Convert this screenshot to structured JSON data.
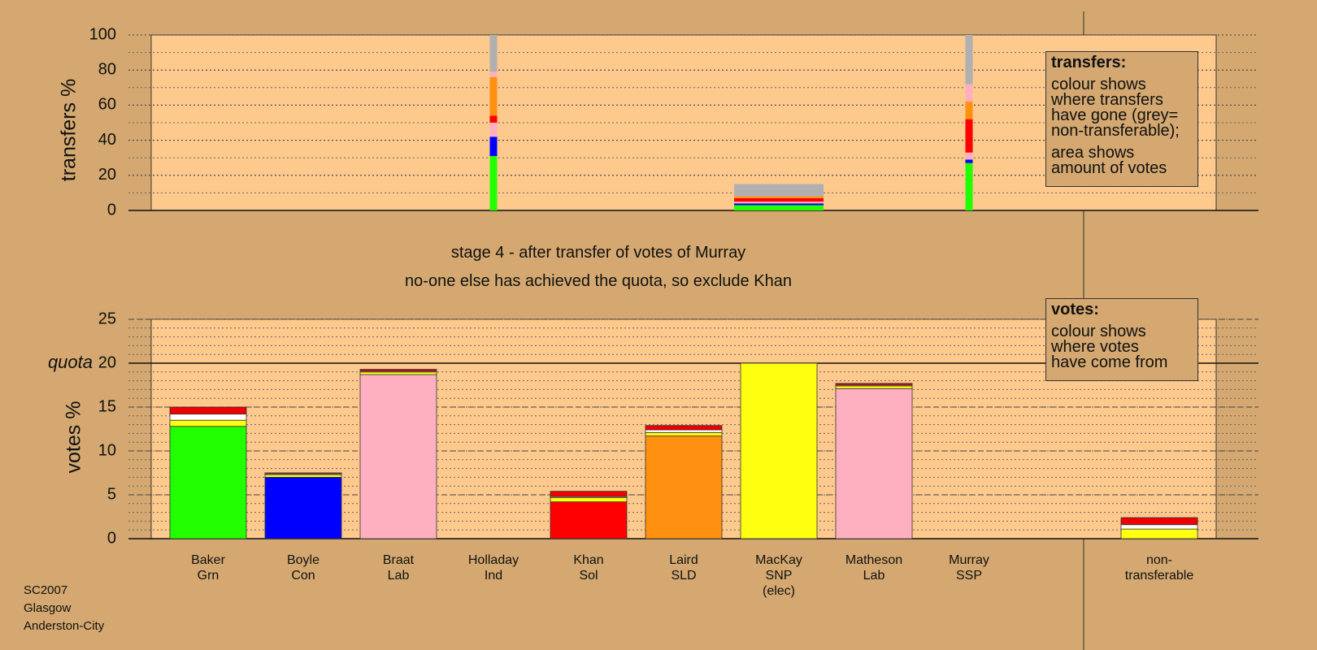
{
  "title": "stage 4 - after transfer of votes of Murray",
  "subtitle": "no-one else has achieved the quota, so exclude Khan",
  "footer": [
    "SC2007",
    "Glasgow",
    "Anderston-City"
  ],
  "chart_data": [
    {
      "type": "bar",
      "stacked": true,
      "ylabel": "transfers %",
      "ylim": [
        0,
        100
      ],
      "yticks": [
        0,
        20,
        40,
        60,
        80,
        100
      ],
      "minor_tick_step": 10,
      "grid": "dotted",
      "legend": {
        "title": "transfers:",
        "text": [
          "colour shows\nwhere transfers\nhave gone (grey=\nnon-transferable);",
          "area shows\namount of votes"
        ]
      },
      "series": [
        {
          "color": "#22ff00",
          "values": [
            null,
            null,
            null,
            31,
            null,
            null,
            3,
            null,
            27,
            null
          ]
        },
        {
          "color": "#0000ff",
          "values": [
            null,
            null,
            null,
            11,
            null,
            null,
            1,
            null,
            2,
            null
          ]
        },
        {
          "color": "#ffb0c0",
          "values": [
            null,
            null,
            null,
            8,
            null,
            null,
            1,
            null,
            4,
            null
          ]
        },
        {
          "color": "#ff0000",
          "values": [
            null,
            null,
            null,
            4,
            null,
            null,
            2,
            null,
            19,
            null
          ]
        },
        {
          "color": "#ff9010",
          "values": [
            null,
            null,
            null,
            22,
            null,
            null,
            1,
            null,
            10,
            null
          ]
        },
        {
          "color": "#ffb0c0",
          "values": [
            null,
            null,
            null,
            3,
            null,
            null,
            0,
            null,
            10,
            null
          ]
        },
        {
          "color": "#b0b0b0",
          "values": [
            null,
            null,
            null,
            21,
            null,
            null,
            7,
            null,
            28,
            null
          ]
        }
      ]
    },
    {
      "type": "bar",
      "stacked": true,
      "ylabel": "votes %",
      "categories": [
        "Baker\nGrn",
        "Boyle\nCon",
        "Braat\nLab",
        "Holladay\nInd",
        "Khan\nSol",
        "Laird\nSLD",
        "MacKay\nSNP\n(elec)",
        "Matheson\nLab",
        "Murray\nSSP",
        "non-\ntransferable"
      ],
      "ylim": [
        0,
        25
      ],
      "yticks": [
        0,
        5,
        10,
        15,
        20,
        25
      ],
      "minor_tick_step": 1,
      "grid": "dashed",
      "quota": {
        "value": 20,
        "label": "quota"
      },
      "legend": {
        "title": "votes:",
        "text": [
          "colour shows\nwhere votes\nhave come from"
        ]
      },
      "series": [
        {
          "color": "#22ff00",
          "values": [
            12.8,
            0,
            0,
            0,
            0,
            0,
            0,
            0,
            0,
            0
          ]
        },
        {
          "color": "#0000ff",
          "values": [
            0,
            7.0,
            0,
            0,
            0,
            0,
            0,
            0,
            0,
            0
          ]
        },
        {
          "color": "#ffb0c0",
          "values": [
            0,
            0,
            18.7,
            0,
            0,
            0,
            0,
            0,
            0,
            0
          ]
        },
        {
          "color": "#ff0000",
          "values": [
            0,
            0,
            0,
            0,
            4.2,
            0,
            0,
            0,
            0,
            0
          ]
        },
        {
          "color": "#ff9010",
          "values": [
            0,
            0,
            0,
            0,
            0,
            11.7,
            0,
            0,
            0,
            0
          ]
        },
        {
          "color": "#ffb0c0",
          "values": [
            0,
            0,
            0,
            0,
            0,
            0,
            0,
            17.1,
            0,
            0
          ]
        },
        {
          "color": "#ffff10",
          "values": [
            0.7,
            0.3,
            0.3,
            0,
            0.5,
            0.4,
            20.0,
            0.3,
            0,
            1.1
          ]
        },
        {
          "color": "#ffffff",
          "values": [
            0.7,
            0.1,
            0.1,
            0,
            0.1,
            0.3,
            0,
            0.1,
            0,
            0.5
          ]
        },
        {
          "color": "#ee0000",
          "values": [
            0.8,
            0.1,
            0.2,
            0,
            0.6,
            0.5,
            0,
            0.2,
            0,
            0.8
          ]
        }
      ]
    }
  ]
}
